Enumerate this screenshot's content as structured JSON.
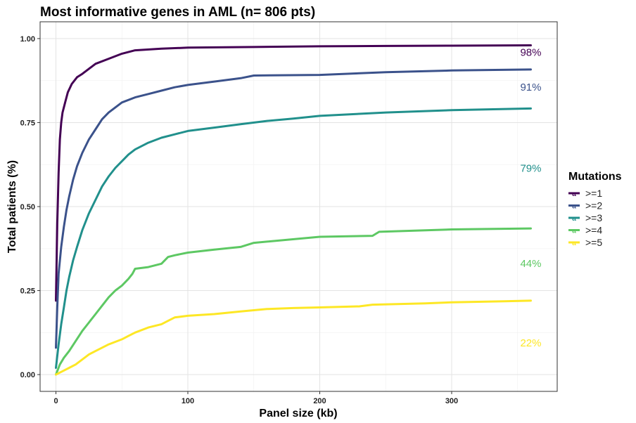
{
  "chart_data": {
    "type": "line",
    "title": "Most informative genes in AML (n= 806 pts)",
    "xlabel": "Panel size (kb)",
    "ylabel": "Total patients (%)",
    "xlim": [
      -12,
      380
    ],
    "ylim": [
      -0.05,
      1.05
    ],
    "x_ticks": [
      0,
      100,
      200,
      300
    ],
    "y_ticks": [
      0.0,
      0.25,
      0.5,
      0.75,
      1.0
    ],
    "x_tick_labels": [
      "0",
      "100",
      "200",
      "300"
    ],
    "y_tick_labels": [
      "0.00",
      "0.25",
      "0.50",
      "0.75",
      "1.00"
    ],
    "grid": true,
    "legend": {
      "title": "Mutations",
      "position": "right",
      "glyph": "a"
    },
    "series": [
      {
        "name": ">=1",
        "color": "#440154",
        "end_label": "98%",
        "points": [
          [
            0,
            0.22
          ],
          [
            1,
            0.45
          ],
          [
            2,
            0.6
          ],
          [
            3,
            0.7
          ],
          [
            4,
            0.75
          ],
          [
            5,
            0.78
          ],
          [
            7,
            0.81
          ],
          [
            9,
            0.84
          ],
          [
            12,
            0.865
          ],
          [
            16,
            0.885
          ],
          [
            20,
            0.895
          ],
          [
            25,
            0.91
          ],
          [
            30,
            0.925
          ],
          [
            40,
            0.94
          ],
          [
            50,
            0.955
          ],
          [
            60,
            0.965
          ],
          [
            80,
            0.97
          ],
          [
            100,
            0.973
          ],
          [
            150,
            0.975
          ],
          [
            200,
            0.977
          ],
          [
            250,
            0.978
          ],
          [
            300,
            0.979
          ],
          [
            360,
            0.98
          ]
        ]
      },
      {
        "name": ">=2",
        "color": "#3B528B",
        "end_label": "91%",
        "points": [
          [
            0,
            0.08
          ],
          [
            1,
            0.2
          ],
          [
            2,
            0.3
          ],
          [
            4,
            0.38
          ],
          [
            6,
            0.44
          ],
          [
            8,
            0.49
          ],
          [
            10,
            0.53
          ],
          [
            13,
            0.58
          ],
          [
            16,
            0.62
          ],
          [
            20,
            0.66
          ],
          [
            25,
            0.7
          ],
          [
            30,
            0.73
          ],
          [
            35,
            0.76
          ],
          [
            40,
            0.78
          ],
          [
            45,
            0.795
          ],
          [
            50,
            0.81
          ],
          [
            60,
            0.825
          ],
          [
            70,
            0.835
          ],
          [
            80,
            0.845
          ],
          [
            90,
            0.855
          ],
          [
            100,
            0.862
          ],
          [
            120,
            0.872
          ],
          [
            140,
            0.882
          ],
          [
            150,
            0.89
          ],
          [
            200,
            0.892
          ],
          [
            250,
            0.9
          ],
          [
            300,
            0.905
          ],
          [
            360,
            0.908
          ]
        ]
      },
      {
        "name": ">=3",
        "color": "#21908C",
        "end_label": "79%",
        "points": [
          [
            0,
            0.02
          ],
          [
            2,
            0.09
          ],
          [
            4,
            0.15
          ],
          [
            6,
            0.2
          ],
          [
            8,
            0.25
          ],
          [
            10,
            0.29
          ],
          [
            13,
            0.34
          ],
          [
            16,
            0.38
          ],
          [
            20,
            0.43
          ],
          [
            25,
            0.48
          ],
          [
            30,
            0.52
          ],
          [
            35,
            0.56
          ],
          [
            40,
            0.59
          ],
          [
            45,
            0.615
          ],
          [
            50,
            0.635
          ],
          [
            55,
            0.655
          ],
          [
            60,
            0.67
          ],
          [
            70,
            0.69
          ],
          [
            80,
            0.705
          ],
          [
            90,
            0.715
          ],
          [
            100,
            0.725
          ],
          [
            120,
            0.735
          ],
          [
            140,
            0.745
          ],
          [
            160,
            0.755
          ],
          [
            180,
            0.762
          ],
          [
            200,
            0.77
          ],
          [
            250,
            0.78
          ],
          [
            300,
            0.787
          ],
          [
            360,
            0.792
          ]
        ]
      },
      {
        "name": ">=4",
        "color": "#5DC863",
        "end_label": "44%",
        "points": [
          [
            0,
            0.0
          ],
          [
            3,
            0.03
          ],
          [
            6,
            0.05
          ],
          [
            10,
            0.07
          ],
          [
            15,
            0.1
          ],
          [
            20,
            0.13
          ],
          [
            25,
            0.155
          ],
          [
            30,
            0.18
          ],
          [
            35,
            0.205
          ],
          [
            40,
            0.23
          ],
          [
            45,
            0.25
          ],
          [
            50,
            0.265
          ],
          [
            55,
            0.285
          ],
          [
            58,
            0.3
          ],
          [
            60,
            0.315
          ],
          [
            70,
            0.32
          ],
          [
            80,
            0.33
          ],
          [
            85,
            0.35
          ],
          [
            90,
            0.355
          ],
          [
            100,
            0.363
          ],
          [
            120,
            0.372
          ],
          [
            140,
            0.38
          ],
          [
            150,
            0.392
          ],
          [
            200,
            0.41
          ],
          [
            240,
            0.413
          ],
          [
            245,
            0.425
          ],
          [
            300,
            0.432
          ],
          [
            360,
            0.435
          ]
        ]
      },
      {
        "name": ">=5",
        "color": "#FDE725",
        "end_label": "22%",
        "points": [
          [
            0,
            0.0
          ],
          [
            5,
            0.01
          ],
          [
            10,
            0.02
          ],
          [
            15,
            0.03
          ],
          [
            20,
            0.045
          ],
          [
            25,
            0.06
          ],
          [
            30,
            0.07
          ],
          [
            40,
            0.09
          ],
          [
            50,
            0.105
          ],
          [
            55,
            0.115
          ],
          [
            60,
            0.125
          ],
          [
            70,
            0.14
          ],
          [
            80,
            0.15
          ],
          [
            85,
            0.16
          ],
          [
            90,
            0.17
          ],
          [
            100,
            0.175
          ],
          [
            120,
            0.18
          ],
          [
            140,
            0.188
          ],
          [
            160,
            0.195
          ],
          [
            180,
            0.198
          ],
          [
            200,
            0.2
          ],
          [
            230,
            0.203
          ],
          [
            240,
            0.208
          ],
          [
            280,
            0.212
          ],
          [
            300,
            0.215
          ],
          [
            340,
            0.218
          ],
          [
            360,
            0.22
          ]
        ]
      }
    ]
  }
}
